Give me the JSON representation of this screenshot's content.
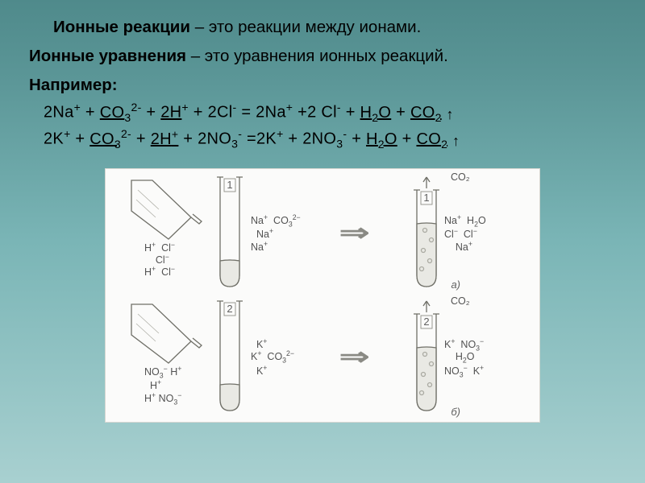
{
  "title_bold": "Ионные реакции",
  "title_rest": " – это реакции между ионами.",
  "line2_bold": "Ионные уравнения",
  "line2_rest": " – это уравнения ионных реакций.",
  "example_label": "Например:",
  "eq1_html": "2Na<sup>+</sup> +  <span class='u'>CO<sub>3</sub></span><sup>2-</sup> + <span class='u'>2H</span><sup>+</sup> + 2Cl<sup>-</sup> = 2Na<sup>+</sup> +2 Cl<sup>-</sup> + <span class='u'>H<sub>2</sub>O</span> + <span class='u'>CO<sub>2</sub></span> <span class='arrow-up'>↑</span>",
  "eq2_html": "2K<sup>+</sup> + <span class='u'>CO<sub>3</sub></span><sup>2-</sup> + <span class='u'>2H<sup>+</sup></span> + 2NO<sub>3</sub><sup>-</sup> =2K<sup>+</sup> + 2NO<sub>3</sub><sup>-</sup> + <span class='u'>H<sub>2</sub>O</span> + <span class='u'>CO<sub>2</sub></span> <span class='arrow-up'>↑</span>",
  "diagram": {
    "row_a": {
      "label": "а)",
      "tube_num": "1",
      "bottle_ions_html": "H<sup>+</sup>&nbsp;&nbsp;Cl<sup>−</sup><br>&nbsp;&nbsp;&nbsp;&nbsp;Cl<sup>−</sup><br>H<sup>+</sup>&nbsp;&nbsp;Cl<sup>−</sup>",
      "tube_left_html": "Na<sup>+</sup>&nbsp;&nbsp;CO<sub>3</sub><sup>2−</sup><br>&nbsp;&nbsp;Na<sup>+</sup><br>Na<sup>+</sup>",
      "co2": "CO₂",
      "right_ions_html": "Na<sup>+</sup>&nbsp;&nbsp;H<sub>2</sub>O<br>Cl<sup>−</sup>&nbsp;&nbsp;Cl<sup>−</sup><br>&nbsp;&nbsp;&nbsp;&nbsp;Na<sup>+</sup>"
    },
    "row_b": {
      "label": "б)",
      "tube_num": "2",
      "bottle_ions_html": "NO<sub>3</sub><sup>−</sup>&nbsp;H<sup>+</sup><br>&nbsp;&nbsp;H<sup>+</sup><br>H<sup>+</sup>&nbsp;NO<sub>3</sub><sup>−</sup>",
      "tube_left_html": "&nbsp;&nbsp;K<sup>+</sup><br>K<sup>+</sup>&nbsp;&nbsp;CO<sub>3</sub><sup>2−</sup><br>&nbsp;&nbsp;K<sup>+</sup>",
      "co2": "CO₂",
      "right_ions_html": "K<sup>+</sup>&nbsp;&nbsp;NO<sub>3</sub><sup>−</sup><br>&nbsp;&nbsp;&nbsp;&nbsp;H<sub>2</sub>O<br>NO<sub>3</sub><sup>−</sup>&nbsp;&nbsp;K<sup>+</sup>"
    },
    "colors": {
      "panel_bg": "#fbfbfa",
      "panel_border": "#d8d8d2",
      "stroke": "#707068",
      "liquid": "#e9e9e4",
      "bubble": "#aaaaa2",
      "text": "#525252"
    }
  }
}
